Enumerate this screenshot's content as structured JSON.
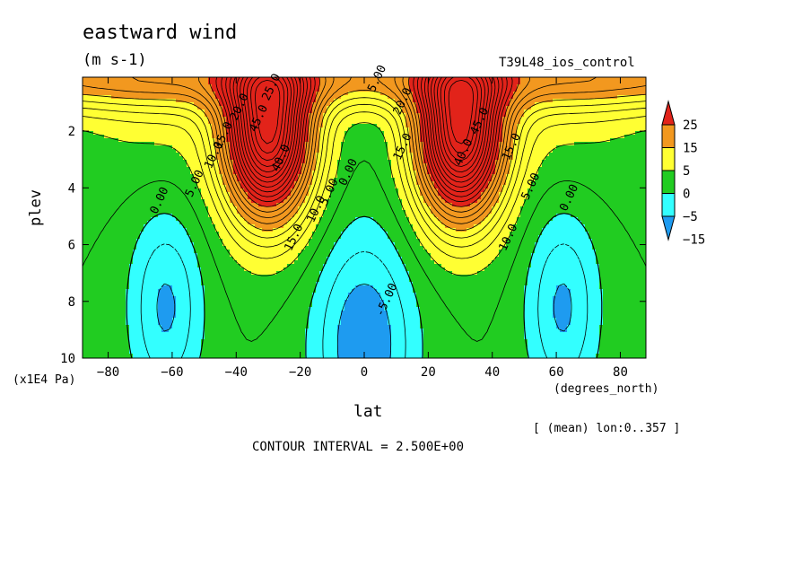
{
  "header": {
    "title": "eastward wind",
    "units": "(m s-1)",
    "run_label": "T39L48_ios_control"
  },
  "footer": {
    "mean_note": "[ (mean) lon:0..357 ]",
    "contour_interval": "CONTOUR INTERVAL = 2.500E+00"
  },
  "chart_data": {
    "type": "heatmap",
    "title": "eastward wind",
    "xlabel": "lat",
    "x_units": "(degrees_north)",
    "ylabel": "plev",
    "y_units": "(x1E4 Pa)",
    "xlim": [
      -88,
      88
    ],
    "ylim": [
      10,
      0.1
    ],
    "y_inverted": true,
    "x_ticks": [
      -80,
      -60,
      -40,
      -20,
      0,
      20,
      40,
      60,
      80
    ],
    "y_ticks": [
      2,
      4,
      6,
      8,
      10
    ],
    "contour_interval": 2.5,
    "colorbar": {
      "labels": [
        "25",
        "15",
        "5",
        "0",
        "-5",
        "-15"
      ],
      "colors": [
        "#e2231a",
        "#f2981f",
        "#ffff33",
        "#21cc21",
        "#33ffff",
        "#1e9bf0"
      ]
    },
    "contour_labels": [
      {
        "text": "25.0",
        "lat": -28,
        "p": 0.5
      },
      {
        "text": "20.0",
        "lat": -38,
        "p": 1.2
      },
      {
        "text": "15.0",
        "lat": -43,
        "p": 2.2
      },
      {
        "text": "10.0",
        "lat": -46,
        "p": 2.9
      },
      {
        "text": "5.00",
        "lat": -52,
        "p": 3.9
      },
      {
        "text": "0.00",
        "lat": -63,
        "p": 4.5
      },
      {
        "text": "45.0",
        "lat": -32,
        "p": 1.6
      },
      {
        "text": "40.0",
        "lat": -25,
        "p": 3.0
      },
      {
        "text": "15.0",
        "lat": -21,
        "p": 5.8
      },
      {
        "text": "10.0",
        "lat": -14,
        "p": 4.8
      },
      {
        "text": "5.00",
        "lat": -10,
        "p": 4.2
      },
      {
        "text": "0.00",
        "lat": -4,
        "p": 3.5
      },
      {
        "text": "5.00",
        "lat": 5,
        "p": 0.2
      },
      {
        "text": "20.0",
        "lat": 13,
        "p": 1.0
      },
      {
        "text": "15.0",
        "lat": 13,
        "p": 2.6
      },
      {
        "text": "45.0",
        "lat": 37,
        "p": 1.7
      },
      {
        "text": "40.0",
        "lat": 32,
        "p": 2.8
      },
      {
        "text": "15.0",
        "lat": 47,
        "p": 2.6
      },
      {
        "text": "10.0",
        "lat": 46,
        "p": 5.8
      },
      {
        "text": "5.00",
        "lat": 53,
        "p": 4.0
      },
      {
        "text": "0.00",
        "lat": 65,
        "p": 4.4
      },
      {
        "text": "-5.00",
        "lat": 8,
        "p": 8.0
      }
    ]
  }
}
